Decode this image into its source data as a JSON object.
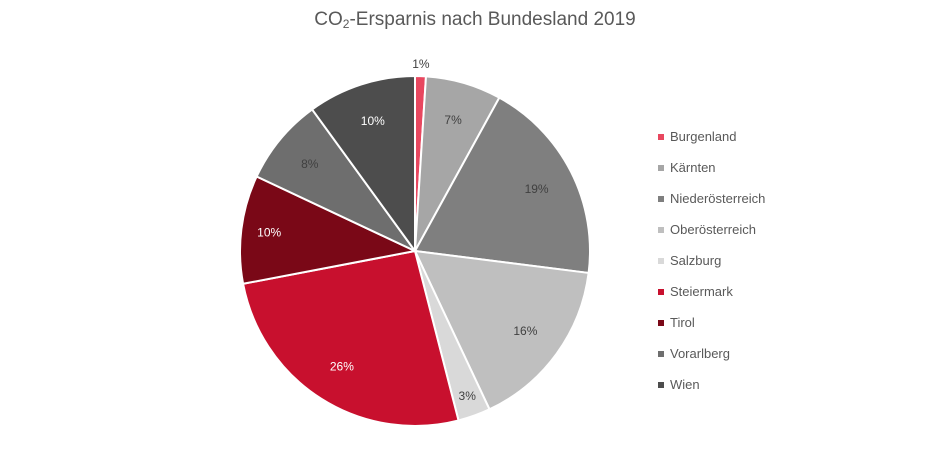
{
  "chart_data": {
    "type": "pie",
    "title_main": "CO",
    "title_sub": "2",
    "title_rest": "-Ersparnis nach Bundesland 2019",
    "legend_position": "right",
    "slices": [
      {
        "name": "Burgenland",
        "value": 1,
        "label": "1%",
        "color": "#E8475F"
      },
      {
        "name": "Kärnten",
        "value": 7,
        "label": "7%",
        "color": "#A6A6A6"
      },
      {
        "name": "Niederösterreich",
        "value": 19,
        "label": "19%",
        "color": "#7F7F7F"
      },
      {
        "name": "Oberösterreich",
        "value": 16,
        "label": "16%",
        "color": "#BFBFBF"
      },
      {
        "name": "Salzburg",
        "value": 3,
        "label": "3%",
        "color": "#D9D9D9"
      },
      {
        "name": "Steiermark",
        "value": 26,
        "label": "26%",
        "color": "#C8102E"
      },
      {
        "name": "Tirol",
        "value": 10,
        "label": "10%",
        "color": "#7A0817"
      },
      {
        "name": "Vorarlberg",
        "value": 8,
        "label": "8%",
        "color": "#6E6E6E"
      },
      {
        "name": "Wien",
        "value": 10,
        "label": "10%",
        "color": "#4D4D4D"
      }
    ]
  }
}
